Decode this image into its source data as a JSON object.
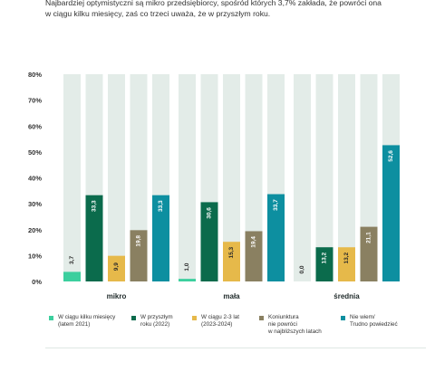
{
  "intro": {
    "line1": "Najbardziej optymistyczni są mikro przedsiębiorcy, spośród których 3,7% zakłada, że powróci ona",
    "line2": "w ciągu kilku miesięcy, zaś co trzeci uważa, że w przyszłym roku."
  },
  "colors": {
    "track": "#e3ece8",
    "series": [
      "#3ccf9e",
      "#0b6b4c",
      "#e6b94a",
      "#8a8061",
      "#0d8fa0"
    ]
  },
  "chart_data": {
    "type": "bar",
    "categories": [
      "mikro",
      "mała",
      "średnia"
    ],
    "ylim": [
      0,
      80
    ],
    "yticks": [
      "0%",
      "10%",
      "20%",
      "30%",
      "40%",
      "50%",
      "60%",
      "70%",
      "80%"
    ],
    "series": [
      {
        "name": "W ciągu kilku miesięcy\n(latem 2021)",
        "values": [
          3.7,
          1.0,
          0.0
        ],
        "labels": [
          "3,7",
          "1,0",
          "0,0"
        ]
      },
      {
        "name": "W przyszłym\nroku (2022)",
        "values": [
          33.3,
          30.6,
          13.2
        ],
        "labels": [
          "33,3",
          "30,6",
          "13,2"
        ]
      },
      {
        "name": "W ciągu 2-3 lat\n(2023-2024)",
        "values": [
          9.9,
          15.3,
          13.2
        ],
        "labels": [
          "9,9",
          "15,3",
          "13,2"
        ]
      },
      {
        "name": "Koniunktura\nnie powróci\nw najbliższych latach",
        "values": [
          19.8,
          19.4,
          21.1
        ],
        "labels": [
          "19,8",
          "19,4",
          "21,1"
        ]
      },
      {
        "name": "Nie wiem/\nTrudno powiedzieć",
        "values": [
          33.3,
          33.7,
          52.6
        ],
        "labels": [
          "33,3",
          "33,7",
          "52,6"
        ]
      }
    ],
    "grid": false,
    "legend_position": "bottom"
  }
}
